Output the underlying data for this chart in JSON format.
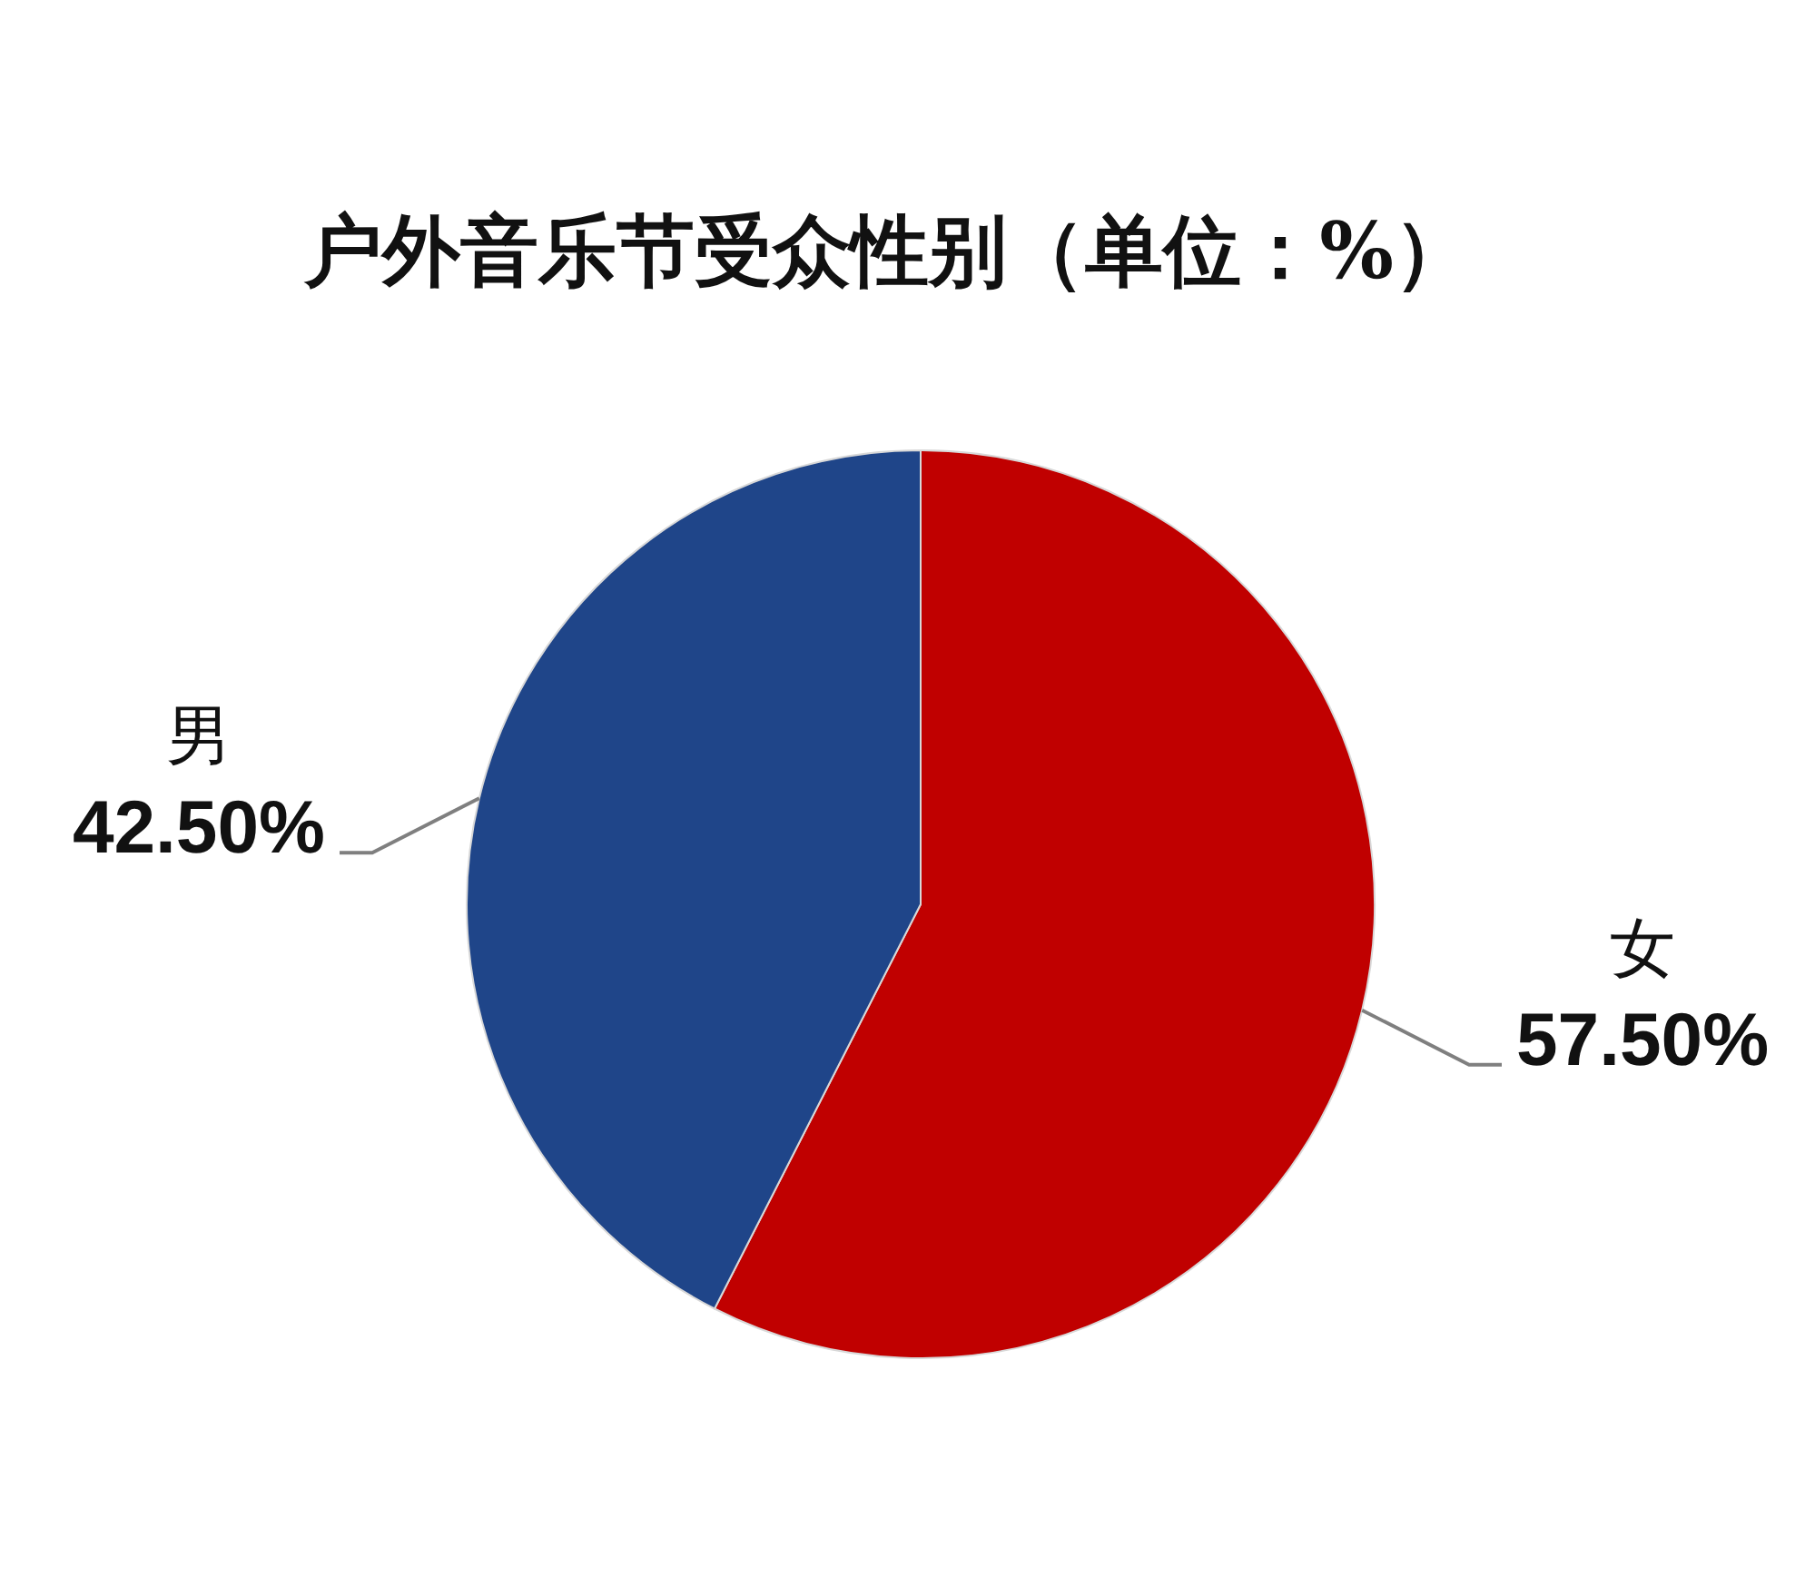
{
  "chart_data": {
    "type": "pie",
    "title": "户外音乐节受众性别（单位：%）",
    "categories": [
      "女",
      "男"
    ],
    "values": [
      57.5,
      42.5
    ],
    "colors": [
      "#c00000",
      "#1f4589"
    ],
    "value_labels": [
      "57.50%",
      "42.50%"
    ]
  }
}
